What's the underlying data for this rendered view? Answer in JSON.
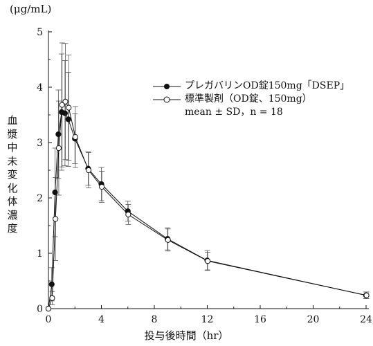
{
  "chart_data": {
    "type": "line",
    "y_unit": "(μg/mL)",
    "ylabel": "血漿中未変化体濃度",
    "xlabel": "投与後時間（hr）",
    "xlim": [
      0,
      24
    ],
    "ylim": [
      0,
      5
    ],
    "x_ticks": [
      "0",
      "4",
      "8",
      "12",
      "16",
      "20",
      "24"
    ],
    "y_ticks": [
      "0",
      "1",
      "2",
      "3",
      "4",
      "5"
    ],
    "legend_note": "mean ± SD，n = 18",
    "series": [
      {
        "name": "プレガバリンOD錠150mg「DSEP」",
        "marker": "filled-circle",
        "color": "#111111",
        "x": [
          0,
          0.25,
          0.5,
          0.75,
          1,
          1.25,
          1.5,
          2,
          3,
          4,
          6,
          9,
          12,
          24
        ],
        "y": [
          0,
          0.44,
          2.1,
          3.15,
          3.55,
          3.53,
          3.42,
          3.07,
          2.53,
          2.25,
          1.76,
          1.26,
          0.87,
          0.24
        ],
        "sd": [
          0,
          0.3,
          0.8,
          0.8,
          1.05,
          0.95,
          0.85,
          0.45,
          0.3,
          0.3,
          0.18,
          0.2,
          0.18,
          0.06
        ]
      },
      {
        "name": "標準製剤（OD錠、150mg）",
        "marker": "open-circle",
        "color": "#111111",
        "x": [
          0,
          0.25,
          0.5,
          0.75,
          1,
          1.25,
          1.5,
          2,
          3,
          4,
          6,
          9,
          12,
          24
        ],
        "y": [
          0,
          0.19,
          1.62,
          2.9,
          3.68,
          3.74,
          3.63,
          3.1,
          2.5,
          2.2,
          1.7,
          1.24,
          0.86,
          0.24
        ],
        "sd": [
          0,
          0.12,
          0.75,
          0.85,
          1.12,
          1.05,
          0.95,
          0.55,
          0.32,
          0.28,
          0.18,
          0.2,
          0.16,
          0.06
        ]
      }
    ],
    "grid": false,
    "legend_position": "upper-right"
  }
}
